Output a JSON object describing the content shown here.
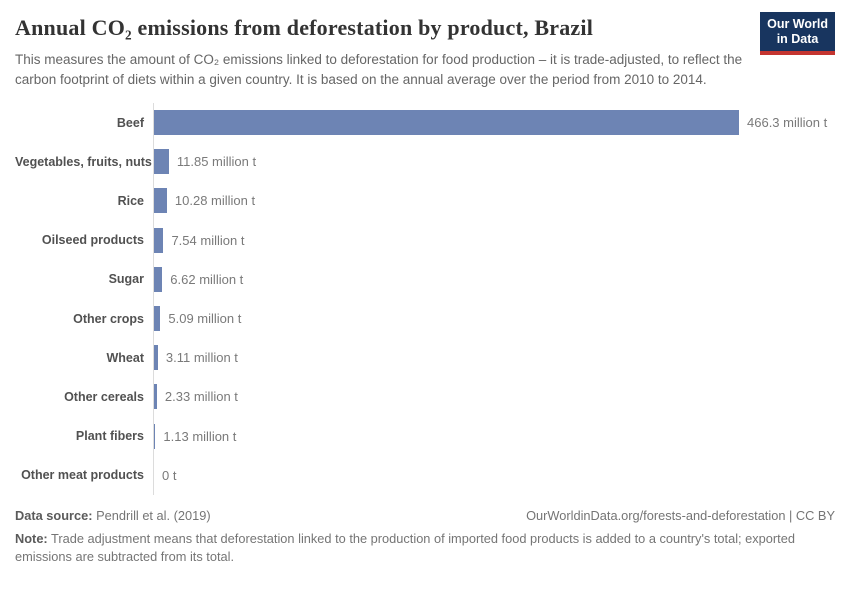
{
  "header": {
    "title": "Annual CO₂ emissions from deforestation by product, Brazil",
    "subtitle": "This measures the amount of CO₂ emissions linked to deforestation for food production – it is trade-adjusted, to reflect the carbon footprint of diets within a given country. It is based on the annual average over the period from 2010 to 2014.",
    "logo": {
      "line1": "Our World",
      "line2": "in Data",
      "bg_color": "#18355f",
      "accent_color": "#c43530"
    }
  },
  "chart_data": {
    "type": "bar",
    "orientation": "horizontal",
    "title": "Annual CO₂ emissions from deforestation by product, Brazil",
    "categories": [
      "Beef",
      "Vegetables, fruits, nuts",
      "Rice",
      "Oilseed products",
      "Sugar",
      "Other crops",
      "Wheat",
      "Other cereals",
      "Plant fibers",
      "Other meat products"
    ],
    "values": [
      466.3,
      11.85,
      10.28,
      7.54,
      6.62,
      5.09,
      3.11,
      2.33,
      1.13,
      0
    ],
    "value_labels": [
      "466.3 million t",
      "11.85 million t",
      "10.28 million t",
      "7.54 million t",
      "6.62 million t",
      "5.09 million t",
      "3.11 million t",
      "2.33 million t",
      "1.13 million t",
      "0 t"
    ],
    "unit": "million t",
    "xlim": [
      0,
      466.3
    ],
    "grid": false,
    "legend": false,
    "bar_color": "#6d84b4",
    "axis_line_color": "#dcdcdc"
  },
  "footer": {
    "source_label": "Data source:",
    "source_text": " Pendrill et al. (2019)",
    "link_text": "OurWorldinData.org/forests-and-deforestation | CC BY",
    "note_label": "Note:",
    "note_text": " Trade adjustment means that deforestation linked to the production of imported food products is added to a country's total; exported emissions are subtracted from its total."
  }
}
